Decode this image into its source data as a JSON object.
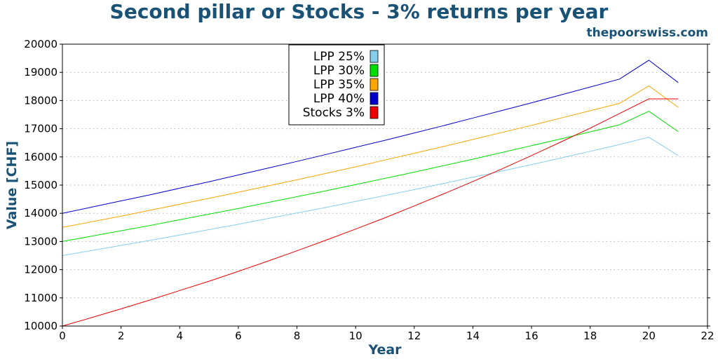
{
  "header": {
    "title": "Second pillar or Stocks - 3% returns per year",
    "source": "thepoorswiss.com"
  },
  "chart_data": {
    "type": "line",
    "xlabel": "Year",
    "ylabel": "Value [CHF]",
    "xlim": [
      0,
      22
    ],
    "ylim": [
      10000,
      20000
    ],
    "x_ticks": [
      0,
      2,
      4,
      6,
      8,
      10,
      12,
      14,
      16,
      18,
      20,
      22
    ],
    "y_ticks": [
      10000,
      11000,
      12000,
      13000,
      14000,
      15000,
      16000,
      17000,
      18000,
      19000,
      20000
    ],
    "grid": "horizontal dotted",
    "legend_position": "top-center",
    "x": [
      0,
      1,
      2,
      3,
      4,
      5,
      6,
      7,
      8,
      9,
      10,
      11,
      12,
      13,
      14,
      15,
      16,
      17,
      18,
      19,
      20,
      21
    ],
    "series": [
      {
        "name": "LPP 25%",
        "color": "#87ceeb",
        "values": [
          12500,
          12680,
          12860,
          13040,
          13230,
          13420,
          13610,
          13810,
          14010,
          14210,
          14420,
          14630,
          14840,
          15060,
          15280,
          15500,
          15730,
          15960,
          16200,
          16440,
          16700,
          16050
        ]
      },
      {
        "name": "LPP 30%",
        "color": "#00dd00",
        "values": [
          13000,
          13190,
          13380,
          13570,
          13770,
          13970,
          14170,
          14380,
          14590,
          14800,
          15020,
          15240,
          15460,
          15690,
          15920,
          16160,
          16400,
          16640,
          16890,
          17140,
          17620,
          16900
        ]
      },
      {
        "name": "LPP 35%",
        "color": "#ffa500",
        "values": [
          13500,
          13700,
          13900,
          14110,
          14320,
          14530,
          14750,
          14970,
          15190,
          15420,
          15650,
          15890,
          16130,
          16370,
          16620,
          16870,
          17120,
          17380,
          17640,
          17900,
          18520,
          17760
        ]
      },
      {
        "name": "LPP 40%",
        "color": "#0000cc",
        "values": [
          14000,
          14220,
          14440,
          14660,
          14890,
          15120,
          15360,
          15600,
          15840,
          16090,
          16340,
          16590,
          16850,
          17110,
          17380,
          17650,
          17920,
          18200,
          18480,
          18760,
          19430,
          18640
        ]
      },
      {
        "name": "Stocks 3%",
        "color": "#ee0000",
        "values": [
          10000,
          10300,
          10610,
          10930,
          11260,
          11590,
          11940,
          12300,
          12670,
          13050,
          13440,
          13840,
          14260,
          14690,
          15130,
          15580,
          16050,
          16530,
          17020,
          17540,
          18060,
          18060
        ]
      }
    ]
  }
}
